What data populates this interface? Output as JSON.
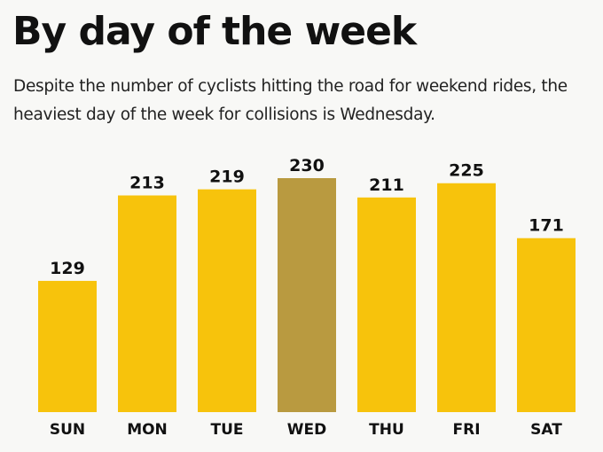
{
  "chart_data": {
    "type": "bar",
    "title": "By day of the week",
    "subtitle": "Despite the number of cyclists hitting the road for weekend rides, the heaviest day of the week for collisions is Wednesday.",
    "categories": [
      "SUN",
      "MON",
      "TUE",
      "WED",
      "THU",
      "FRI",
      "SAT"
    ],
    "values": [
      129,
      213,
      219,
      230,
      211,
      225,
      171
    ],
    "highlight": "WED",
    "xlabel": "",
    "ylabel": "",
    "ylim": [
      0,
      230
    ],
    "grid": false,
    "data_labels": true,
    "colors": {
      "bar": "#f7c30c",
      "highlight": "#b99a40",
      "background": "#f8f8f6"
    }
  }
}
